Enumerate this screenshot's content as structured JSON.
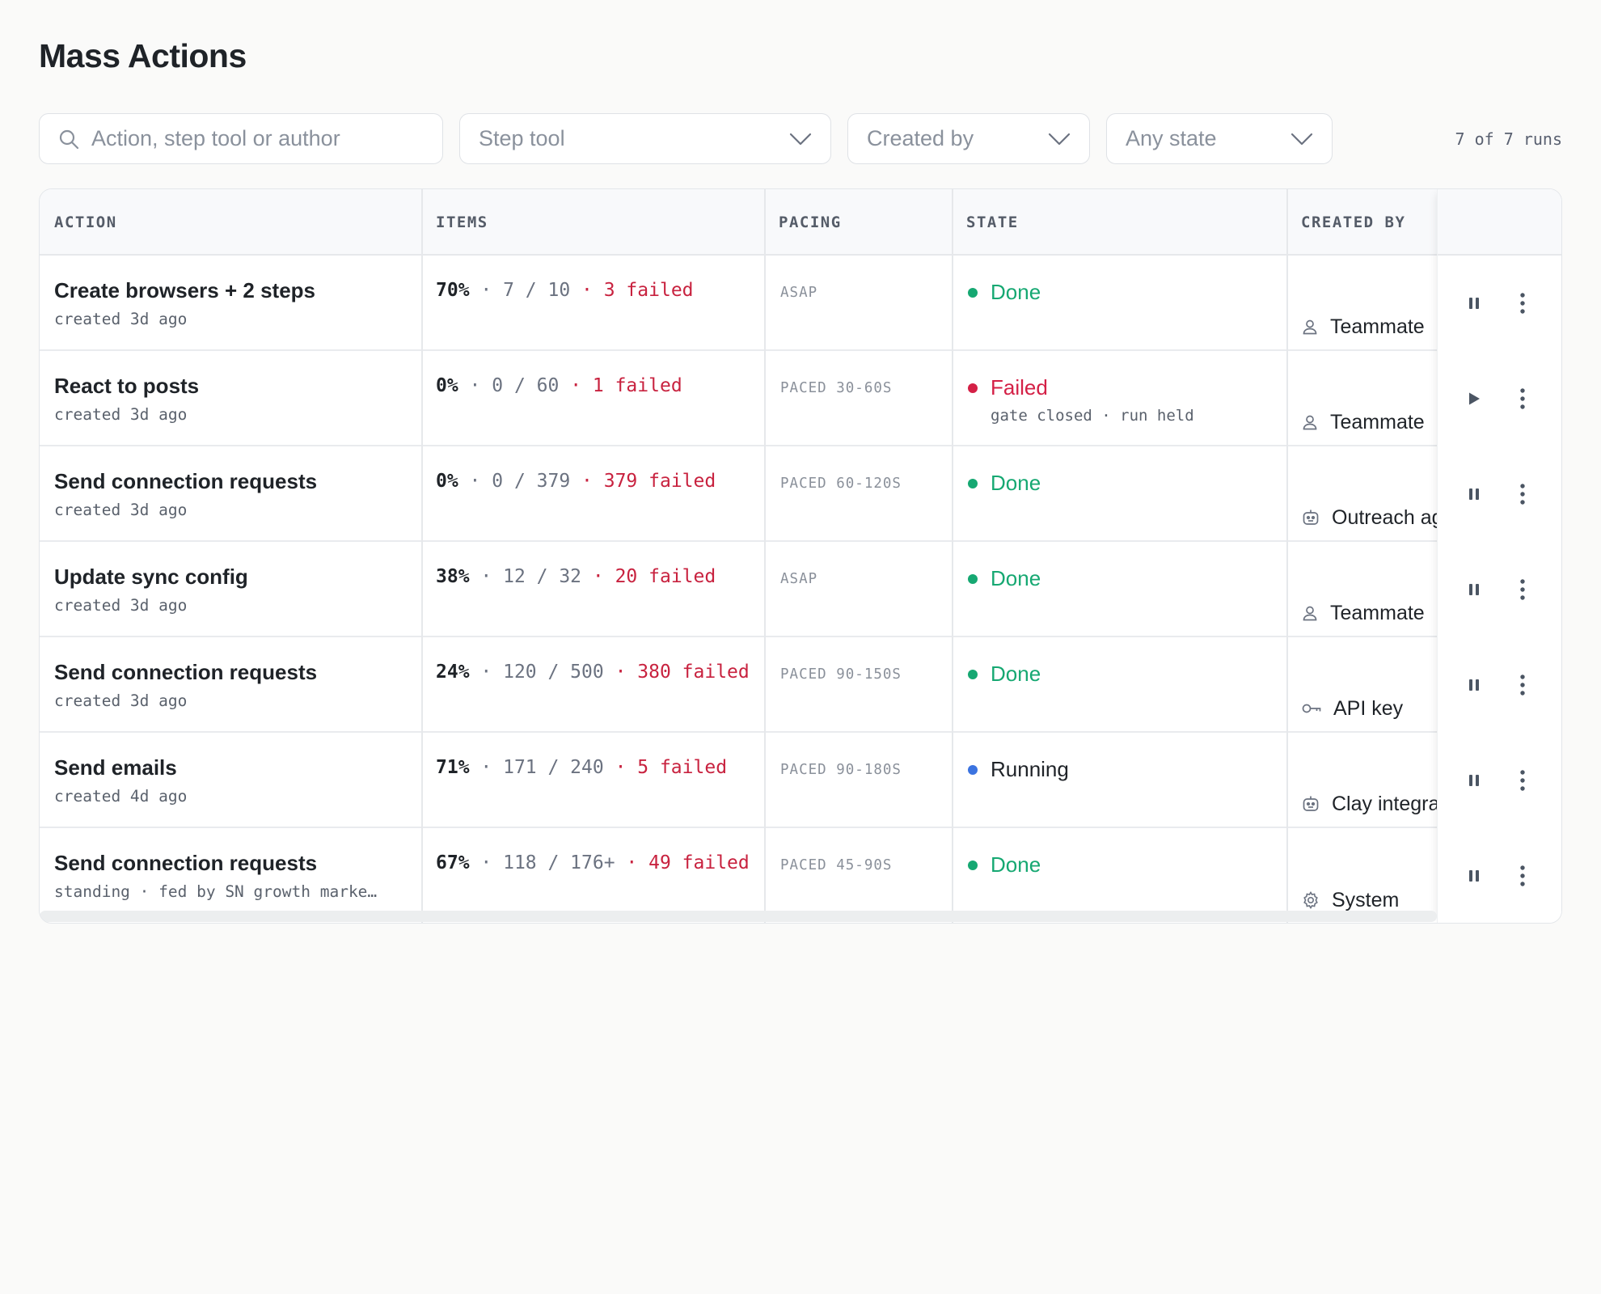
{
  "page": {
    "title": "Mass Actions"
  },
  "filters": {
    "search_placeholder": "Action, step tool or author",
    "step_tool": "Step tool",
    "created_by": "Created by",
    "state": "Any state",
    "runs_count": "7 of 7 runs"
  },
  "table": {
    "headers": {
      "action": "ACTION",
      "items": "ITEMS",
      "pacing": "PACING",
      "state": "STATE",
      "created_by": "CREATED BY"
    },
    "rows": [
      {
        "title": "Create browsers + 2 steps",
        "sub": "created 3d ago",
        "pct": "70%",
        "progress": "7 / 10",
        "failed": "3 failed",
        "pacing": "ASAP",
        "state": "Done",
        "state_color": "#16a872",
        "note": "",
        "creator": "Teammate",
        "creator_icon": "user-icon",
        "control": "pause"
      },
      {
        "title": "React to posts",
        "sub": "created 3d ago",
        "pct": "0%",
        "progress": "0 / 60",
        "failed": "1 failed",
        "pacing": "PACED 30-60S",
        "state": "Failed",
        "state_color": "#d42046",
        "note": "gate closed · run held",
        "creator": "Teammate",
        "creator_icon": "user-icon",
        "control": "play"
      },
      {
        "title": "Send connection requests",
        "sub": "created 3d ago",
        "pct": "0%",
        "progress": "0 / 379",
        "failed": "379 failed",
        "pacing": "PACED 60-120S",
        "state": "Done",
        "state_color": "#16a872",
        "note": "",
        "creator": "Outreach agent",
        "creator_icon": "robot-icon",
        "control": "pause"
      },
      {
        "title": "Update sync config",
        "sub": "created 3d ago",
        "pct": "38%",
        "progress": "12 / 32",
        "failed": "20 failed",
        "pacing": "ASAP",
        "state": "Done",
        "state_color": "#16a872",
        "note": "",
        "creator": "Teammate",
        "creator_icon": "user-icon",
        "control": "pause"
      },
      {
        "title": "Send connection requests",
        "sub": "created 3d ago",
        "pct": "24%",
        "progress": "120 / 500",
        "failed": "380 failed",
        "pacing": "PACED 90-150S",
        "state": "Done",
        "state_color": "#16a872",
        "note": "",
        "creator": "API key",
        "creator_icon": "key-icon",
        "control": "pause"
      },
      {
        "title": "Send emails",
        "sub": "created 4d ago",
        "pct": "71%",
        "progress": "171 / 240",
        "failed": "5 failed",
        "pacing": "PACED 90-180S",
        "state": "Running",
        "state_color": "#3b73e0",
        "note": "",
        "creator": "Clay integration",
        "creator_icon": "robot-icon",
        "control": "pause"
      },
      {
        "title": "Send connection requests",
        "sub": "standing · fed by SN growth marke…",
        "pct": "67%",
        "progress": "118 / 176+",
        "failed": "49 failed",
        "pacing": "PACED 45-90S",
        "state": "Done",
        "state_color": "#16a872",
        "note": "",
        "creator": "System",
        "creator_icon": "gear-icon",
        "control": "pause"
      }
    ]
  }
}
